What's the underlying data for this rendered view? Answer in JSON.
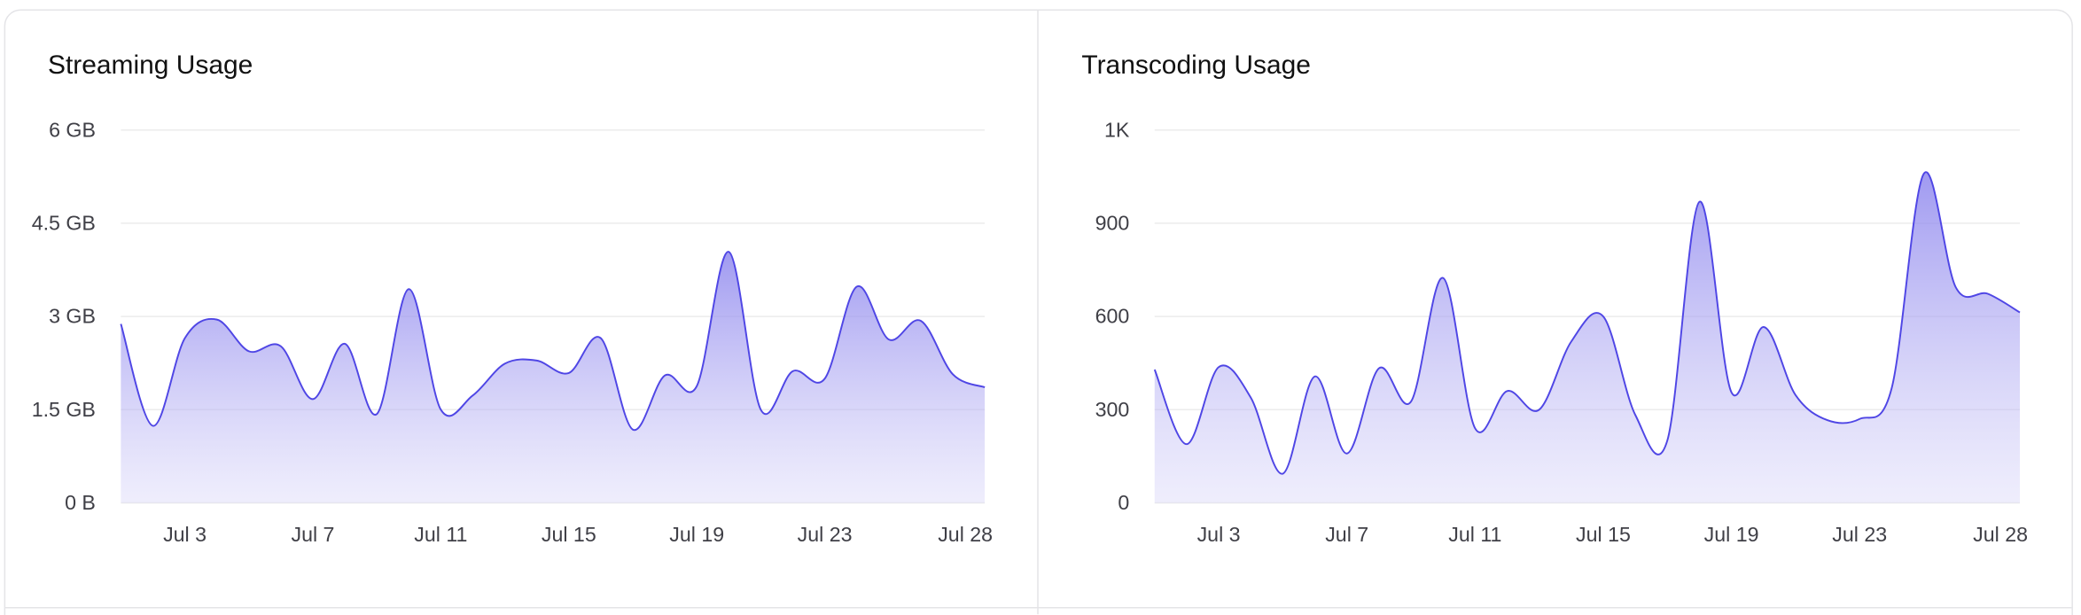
{
  "chart_data": [
    {
      "type": "area",
      "title": "Streaming Usage",
      "color": "#4f46e5",
      "categories": [
        null,
        null,
        "Jul 3",
        null,
        null,
        null,
        "Jul 7",
        null,
        null,
        null,
        "Jul 11",
        null,
        null,
        null,
        "Jul 15",
        null,
        null,
        null,
        "Jul 19",
        null,
        null,
        null,
        "Jul 23",
        null,
        null,
        null,
        null,
        "Jul 28"
      ],
      "values": [
        2.88,
        1.24,
        2.65,
        2.95,
        2.44,
        2.52,
        1.67,
        2.56,
        1.43,
        3.44,
        1.5,
        1.73,
        2.24,
        2.29,
        2.09,
        2.65,
        1.18,
        2.05,
        1.88,
        4.04,
        1.5,
        2.12,
        2.0,
        3.48,
        2.63,
        2.93,
        2.07,
        1.86
      ],
      "ylim": [
        0,
        6
      ],
      "yticks": [
        {
          "value": 0,
          "label": "0 B"
        },
        {
          "value": 1.5,
          "label": "1.5 GB"
        },
        {
          "value": 3,
          "label": "3 GB"
        },
        {
          "value": 4.5,
          "label": "4.5 GB"
        },
        {
          "value": 6,
          "label": "6 GB"
        }
      ],
      "grid": true
    },
    {
      "type": "area",
      "title": "Transcoding Usage",
      "color": "#4f46e5",
      "categories": [
        null,
        null,
        "Jul 3",
        null,
        null,
        null,
        "Jul 7",
        null,
        null,
        null,
        "Jul 11",
        null,
        null,
        null,
        "Jul 15",
        null,
        null,
        null,
        "Jul 19",
        null,
        null,
        null,
        "Jul 23",
        null,
        null,
        null,
        null,
        "Jul 28"
      ],
      "values": [
        429,
        189,
        437,
        339,
        94,
        407,
        159,
        433,
        326,
        724,
        240,
        360,
        300,
        519,
        600,
        283,
        201,
        969,
        356,
        566,
        347,
        266,
        270,
        369,
        1059,
        694,
        673,
        613
      ],
      "ylim": [
        0,
        1200
      ],
      "yticks": [
        0,
        300,
        600,
        900,
        {
          "value": 1200,
          "label": "1K"
        }
      ],
      "grid": true
    }
  ]
}
